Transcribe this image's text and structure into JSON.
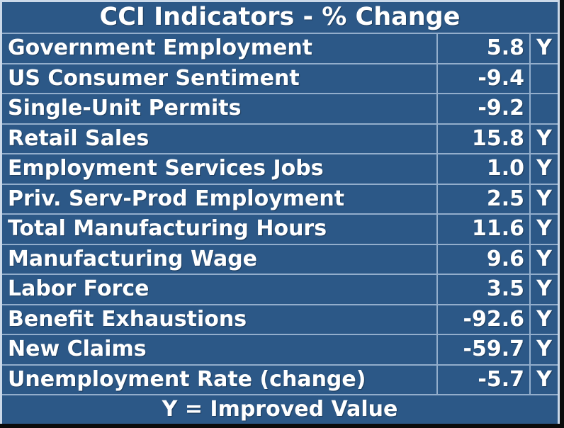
{
  "colors": {
    "background": "#2c5887",
    "grid_line": "#93aecc",
    "outer_border": "#cbd9e9",
    "frame": "#0b0b0b",
    "text": "#ffffff"
  },
  "chart_data": {
    "type": "table",
    "title": "CCI Indicators - % Change",
    "footnote": "Y = Improved Value",
    "rows": [
      {
        "label": "Government Employment",
        "value": "5.8",
        "flag": "Y"
      },
      {
        "label": "US Consumer Sentiment",
        "value": "-9.4",
        "flag": ""
      },
      {
        "label": "Single-Unit Permits",
        "value": "-9.2",
        "flag": ""
      },
      {
        "label": "Retail Sales",
        "value": "15.8",
        "flag": "Y"
      },
      {
        "label": "Employment Services Jobs",
        "value": "1.0",
        "flag": "Y"
      },
      {
        "label": "Priv. Serv-Prod Employment",
        "value": "2.5",
        "flag": "Y"
      },
      {
        "label": "Total Manufacturing Hours",
        "value": "11.6",
        "flag": "Y"
      },
      {
        "label": "Manufacturing Wage",
        "value": "9.6",
        "flag": "Y"
      },
      {
        "label": "Labor Force",
        "value": "3.5",
        "flag": "Y"
      },
      {
        "label": "Benefit Exhaustions",
        "value": "-92.6",
        "flag": "Y"
      },
      {
        "label": "New Claims",
        "value": "-59.7",
        "flag": "Y"
      },
      {
        "label": "Unemployment Rate (change)",
        "value": "-5.7",
        "flag": "Y"
      }
    ]
  }
}
